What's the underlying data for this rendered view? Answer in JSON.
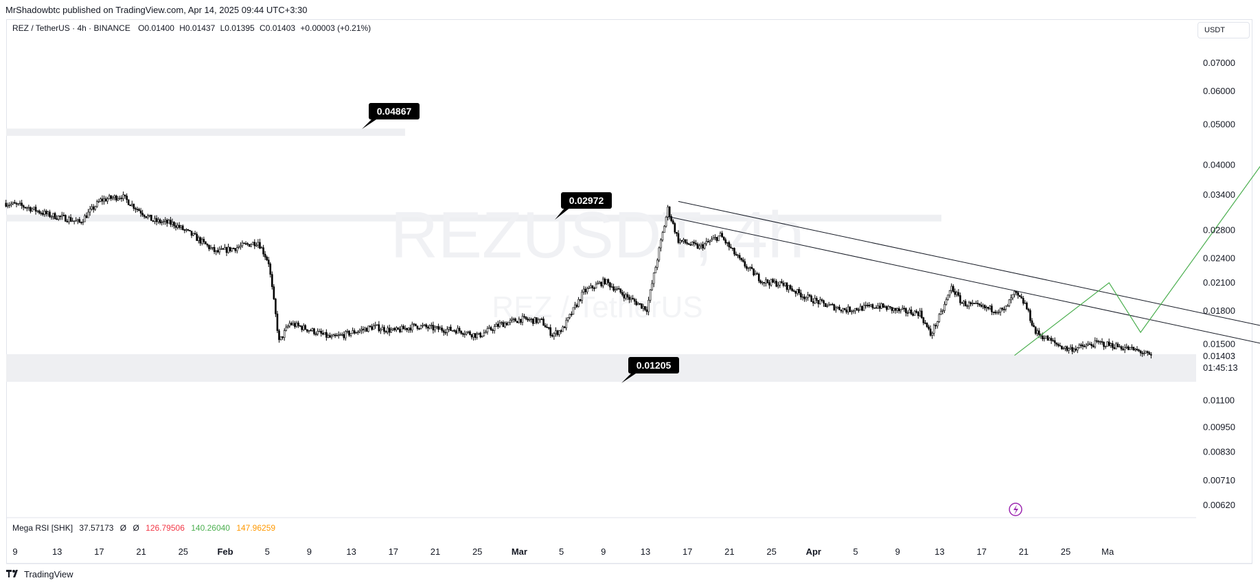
{
  "header": {
    "publisher_line": "MrShadowbtc published on TradingView.com, Apr 14, 2025 09:44 UTC+3:30"
  },
  "legend": {
    "symbol": "REZ / TetherUS · 4h · BINANCE",
    "open": "O0.01400",
    "high": "H0.01437",
    "low": "L0.01395",
    "close": "C0.01403",
    "change": "+0.00003 (+0.21%)"
  },
  "currency_button": "USDT",
  "watermark": {
    "big": "REZUSDT, 4h",
    "small": "REZ / TetherUS"
  },
  "indicator": {
    "name": "Mega RSI [SHK]",
    "v1": "37.57173",
    "v2": "Ø",
    "v3": "Ø",
    "v4": "126.79506",
    "v5": "140.26040",
    "v6": "147.96259",
    "colors": {
      "v4": "#f23645",
      "v5": "#4caf50",
      "v6": "#ff9800"
    }
  },
  "branding": {
    "label": "TradingView",
    "logo_icon": "tradingview-logo-icon"
  },
  "chart_data": {
    "type": "candlestick",
    "scale": "log",
    "symbol": "REZ / TetherUS",
    "interval": "4h",
    "y_tick_labels": [
      "0.07000",
      "0.06000",
      "0.05000",
      "0.04000",
      "0.03400",
      "0.02800",
      "0.02400",
      "0.02100",
      "0.01800",
      "0.01500",
      "0.01100",
      "0.00950",
      "0.00830",
      "0.00710",
      "0.00620"
    ],
    "last_price": "0.01403",
    "countdown": "01:45:13",
    "x_tick_labels": [
      "9",
      "13",
      "17",
      "21",
      "25",
      "Feb",
      "5",
      "9",
      "13",
      "17",
      "21",
      "25",
      "Mar",
      "5",
      "9",
      "13",
      "17",
      "21",
      "25",
      "Apr",
      "5",
      "9",
      "13",
      "17",
      "21",
      "25",
      "Ma"
    ],
    "x_tick_bold": [
      "Feb",
      "Mar",
      "Apr"
    ],
    "price_path": [
      [
        "Jan 8",
        0.0325
      ],
      [
        "Jan 10",
        0.0318
      ],
      [
        "Jan 12",
        0.0305
      ],
      [
        "Jan 14",
        0.0298
      ],
      [
        "Jan 15",
        0.0292
      ],
      [
        "Jan 17",
        0.033
      ],
      [
        "Jan 19",
        0.0338
      ],
      [
        "Jan 20",
        0.0322
      ],
      [
        "Jan 22",
        0.0295
      ],
      [
        "Jan 24",
        0.029
      ],
      [
        "Jan 26",
        0.027
      ],
      [
        "Jan 28",
        0.0248
      ],
      [
        "Jan 30",
        0.0255
      ],
      [
        "Feb 1",
        0.0263
      ],
      [
        "Feb 2",
        0.0235
      ],
      [
        "Feb 3",
        0.0152
      ],
      [
        "Feb 4",
        0.0168
      ],
      [
        "Feb 6",
        0.0162
      ],
      [
        "Feb 8",
        0.0155
      ],
      [
        "Feb 10",
        0.016
      ],
      [
        "Feb 12",
        0.0165
      ],
      [
        "Feb 14",
        0.0161
      ],
      [
        "Feb 16",
        0.0166
      ],
      [
        "Feb 18",
        0.0163
      ],
      [
        "Feb 20",
        0.0162
      ],
      [
        "Feb 22",
        0.0157
      ],
      [
        "Feb 24",
        0.0167
      ],
      [
        "Feb 26",
        0.0172
      ],
      [
        "Feb 28",
        0.017
      ],
      [
        "Mar 1",
        0.0158
      ],
      [
        "Mar 2",
        0.0163
      ],
      [
        "Mar 4",
        0.02
      ],
      [
        "Mar 6",
        0.0212
      ],
      [
        "Mar 8",
        0.0195
      ],
      [
        "Mar 10",
        0.0182
      ],
      [
        "Mar 11",
        0.024
      ],
      [
        "Mar 12",
        0.0315
      ],
      [
        "Mar 13",
        0.0265
      ],
      [
        "Mar 15",
        0.0255
      ],
      [
        "Mar 17",
        0.0272
      ],
      [
        "Mar 19",
        0.0235
      ],
      [
        "Mar 21",
        0.0212
      ],
      [
        "Mar 23",
        0.0208
      ],
      [
        "Mar 25",
        0.0195
      ],
      [
        "Mar 27",
        0.0186
      ],
      [
        "Mar 29",
        0.0181
      ],
      [
        "Apr 1",
        0.0185
      ],
      [
        "Apr 3",
        0.018
      ],
      [
        "Apr 5",
        0.0178
      ],
      [
        "Apr 6",
        0.0158
      ],
      [
        "Apr 7",
        0.0177
      ],
      [
        "Apr 8",
        0.0205
      ],
      [
        "Apr 9",
        0.0188
      ],
      [
        "Apr 11",
        0.0183
      ],
      [
        "Apr 13",
        0.018
      ],
      [
        "Apr 14",
        0.0198
      ],
      [
        "Apr 15",
        0.0187
      ],
      [
        "Apr 16",
        0.016
      ],
      [
        "Apr 18",
        0.015
      ],
      [
        "Apr 19",
        0.0146
      ],
      [
        "Apr 20",
        0.0147
      ],
      [
        "Apr 22",
        0.0151
      ],
      [
        "Apr 24",
        0.0148
      ],
      [
        "Apr 26",
        0.0144
      ],
      [
        "Apr 27",
        0.014
      ]
    ],
    "zones": [
      {
        "label_value": "0.04867",
        "low": 0.047,
        "high": 0.0489
      },
      {
        "label_value": "0.02972",
        "low": 0.0294,
        "high": 0.0305
      },
      {
        "label_value": "0.01205",
        "low": 0.0122,
        "high": 0.0142
      }
    ],
    "trendlines": [
      {
        "from": [
          "Mar 13",
          0.0328
        ],
        "to": [
          "May 12",
          0.0157
        ]
      },
      {
        "from": [
          "Mar 12",
          0.0302
        ],
        "to": [
          "May 10",
          0.0146
        ]
      }
    ],
    "projection": [
      [
        "Apr 14",
        0.0141
      ],
      [
        "Apr 23",
        0.021
      ],
      [
        "Apr 26",
        0.016
      ],
      [
        "May 10",
        0.049
      ]
    ],
    "colors": {
      "candle": "#000000",
      "zone": "#eeeff2",
      "projection": "#4caf50",
      "trendline": "#131722",
      "label_bg": "#000000",
      "label_text": "#ffffff",
      "alert": "#9c27b0"
    }
  }
}
